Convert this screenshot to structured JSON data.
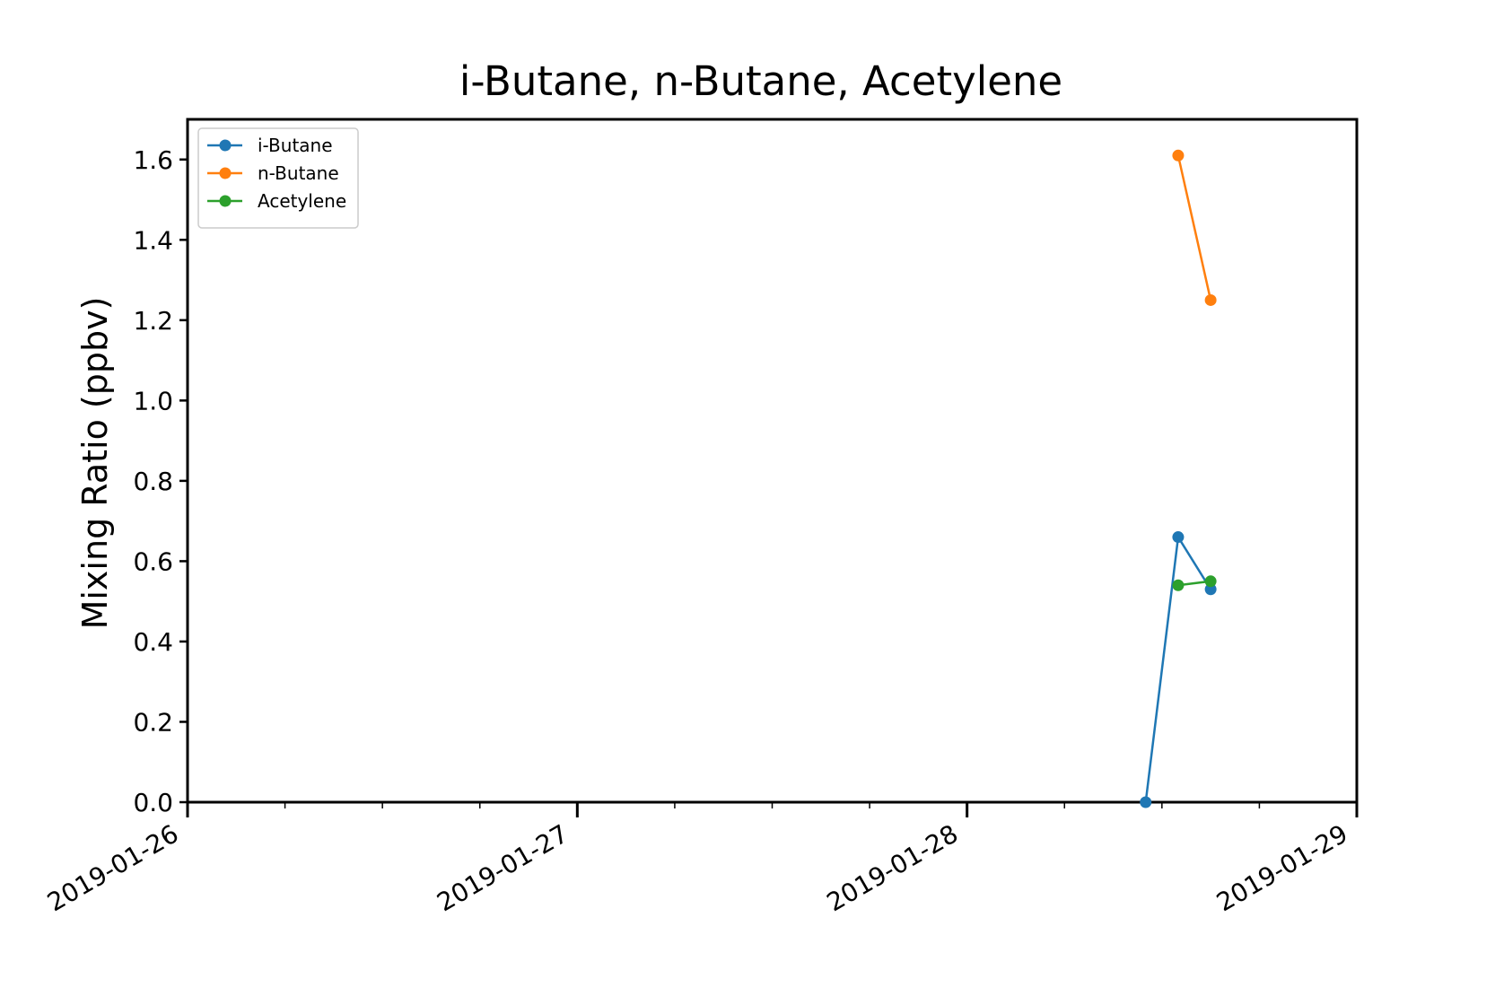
{
  "chart_data": {
    "type": "line",
    "title": "i-Butane, n-Butane, Acetylene",
    "xlabel": "",
    "ylabel": "Mixing Ratio (ppbv)",
    "xlim": [
      "2019-01-26",
      "2019-01-29"
    ],
    "ylim": [
      0.0,
      1.7
    ],
    "x_ticks": [
      "2019-01-26",
      "2019-01-27",
      "2019-01-28",
      "2019-01-29"
    ],
    "y_ticks": [
      "0.0",
      "0.2",
      "0.4",
      "0.6",
      "0.8",
      "1.0",
      "1.2",
      "1.4",
      "1.6"
    ],
    "legend_position": "top-left",
    "grid": false,
    "series": [
      {
        "name": "i-Butane",
        "color": "#1f77b4",
        "points": [
          {
            "x": "2019-01-28T11:00",
            "y": 0.0
          },
          {
            "x": "2019-01-28T13:00",
            "y": 0.66
          },
          {
            "x": "2019-01-28T15:00",
            "y": 0.53
          }
        ]
      },
      {
        "name": "n-Butane",
        "color": "#ff7f0e",
        "points": [
          {
            "x": "2019-01-28T13:00",
            "y": 1.61
          },
          {
            "x": "2019-01-28T15:00",
            "y": 1.25
          }
        ]
      },
      {
        "name": "Acetylene",
        "color": "#2ca02c",
        "points": [
          {
            "x": "2019-01-28T13:00",
            "y": 0.54
          },
          {
            "x": "2019-01-28T15:00",
            "y": 0.55
          }
        ]
      }
    ]
  }
}
